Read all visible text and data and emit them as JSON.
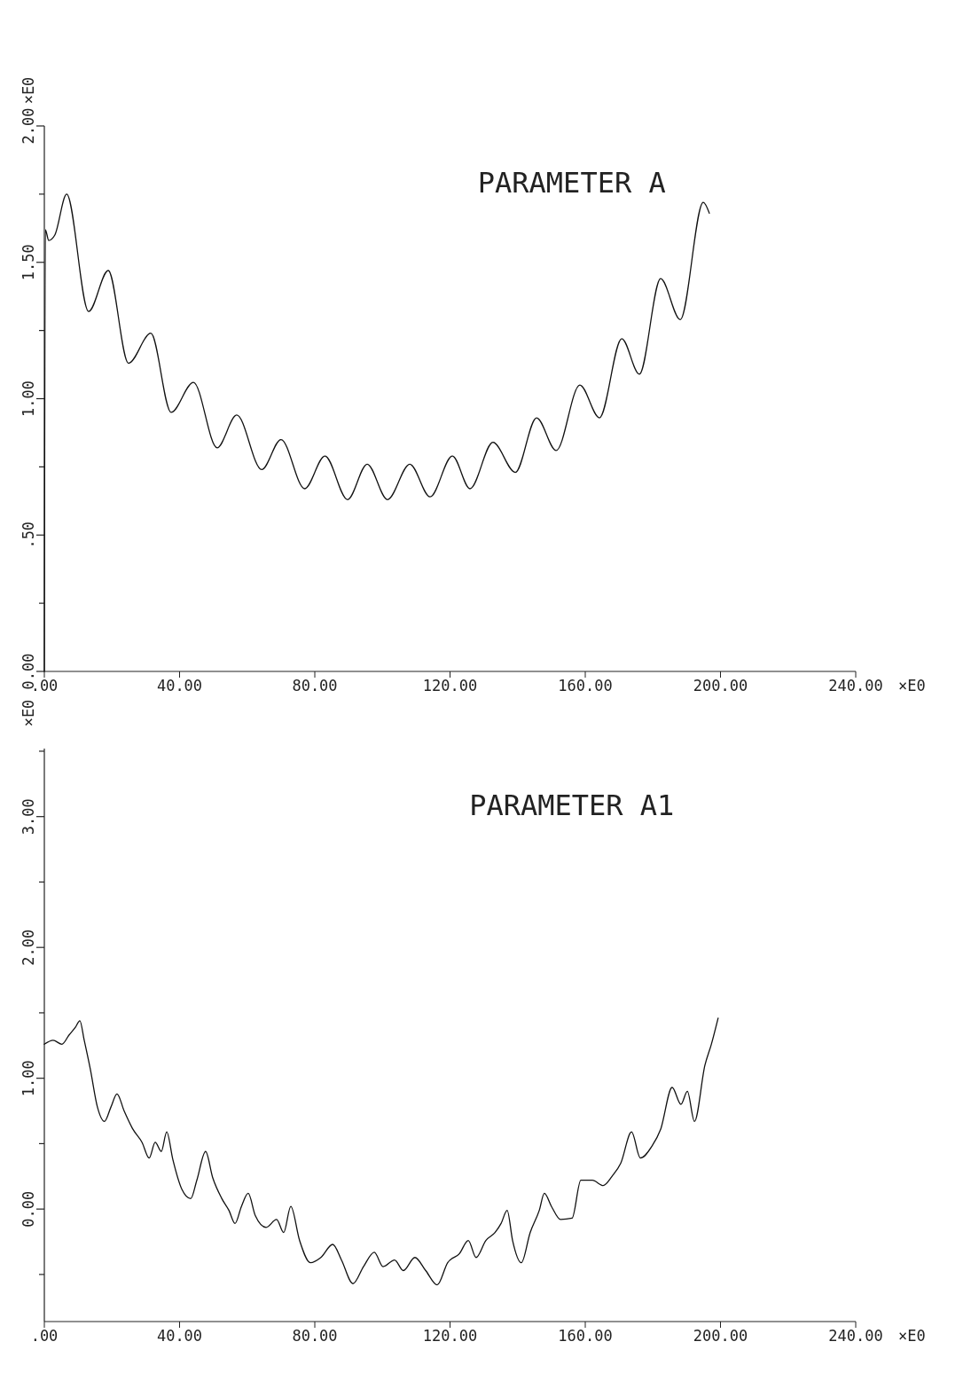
{
  "chart_data": [
    {
      "type": "line",
      "title": "PARAMETER A",
      "xlabel": "×E0",
      "ylabel": "×E0",
      "xlim": [
        0,
        240
      ],
      "ylim": [
        0,
        2
      ],
      "xticks": [
        {
          "value": 0,
          "label": ".00"
        },
        {
          "value": 40,
          "label": "40.00"
        },
        {
          "value": 80,
          "label": "80.00"
        },
        {
          "value": 120,
          "label": "120.00"
        },
        {
          "value": 160,
          "label": "160.00"
        },
        {
          "value": 200,
          "label": "200.00"
        },
        {
          "value": 240,
          "label": "240.00"
        }
      ],
      "yticks": [
        {
          "value": 0,
          "label": "0.00"
        },
        {
          "value": 0.25,
          "label": null
        },
        {
          "value": 0.5,
          "label": ".50"
        },
        {
          "value": 0.75,
          "label": null
        },
        {
          "value": 1,
          "label": "1.00"
        },
        {
          "value": 1.25,
          "label": null
        },
        {
          "value": 1.5,
          "label": "1.50"
        },
        {
          "value": 1.75,
          "label": null
        },
        {
          "value": 2,
          "label": "2.00"
        }
      ],
      "grid": false,
      "series": [
        {
          "color": "#111111",
          "x": [
            0,
            0.3,
            1.3,
            3.1,
            6.6,
            13.1,
            18.9,
            24.9,
            31.5,
            37.5,
            44.1,
            51.1,
            56.9,
            64.3,
            70.0,
            77.0,
            83.0,
            89.7,
            95.5,
            101.5,
            108.1,
            114.1,
            120.7,
            125.9,
            132.7,
            139.3,
            145.6,
            151.4,
            158.4,
            164.2,
            170.8,
            176.0,
            182.3,
            188.1,
            194.9,
            196.7
          ],
          "values": [
            0,
            1.62,
            1.58,
            1.6,
            1.75,
            1.32,
            1.47,
            1.13,
            1.24,
            0.95,
            1.06,
            0.82,
            0.94,
            0.74,
            0.85,
            0.67,
            0.79,
            0.63,
            0.76,
            0.63,
            0.76,
            0.64,
            0.79,
            0.67,
            0.84,
            0.73,
            0.93,
            0.81,
            1.05,
            0.93,
            1.22,
            1.09,
            1.44,
            1.29,
            1.72,
            1.68
          ]
        }
      ]
    },
    {
      "type": "line",
      "title": "PARAMETER A1",
      "xlabel": "×E0",
      "ylabel": "×E0",
      "xlim": [
        0,
        240
      ],
      "ylim": [
        -0.86,
        3.52
      ],
      "xticks": [
        {
          "value": 0,
          "label": ".00"
        },
        {
          "value": 40,
          "label": "40.00"
        },
        {
          "value": 80,
          "label": "80.00"
        },
        {
          "value": 120,
          "label": "120.00"
        },
        {
          "value": 160,
          "label": "160.00"
        },
        {
          "value": 200,
          "label": "200.00"
        },
        {
          "value": 240,
          "label": "240.00"
        }
      ],
      "yticks": [
        {
          "value": -0.5,
          "label": null
        },
        {
          "value": 0,
          "label": "0.00"
        },
        {
          "value": 0.5,
          "label": null
        },
        {
          "value": 1,
          "label": "1.00"
        },
        {
          "value": 1.5,
          "label": null
        },
        {
          "value": 2,
          "label": "2.00"
        },
        {
          "value": 2.5,
          "label": null
        },
        {
          "value": 3,
          "label": "3.00"
        },
        {
          "value": 3.5,
          "label": null
        }
      ],
      "grid": false,
      "series": [
        {
          "color": "#111111",
          "x": [
            0,
            2.6,
            5.2,
            7.3,
            9.2,
            10.5,
            11.8,
            13.6,
            15.7,
            17.8,
            19.7,
            21.5,
            23.6,
            26.2,
            28.9,
            31.0,
            32.8,
            34.6,
            36.2,
            38.0,
            40.7,
            43.3,
            45.1,
            47.7,
            49.8,
            52.5,
            54.6,
            56.4,
            58.3,
            60.3,
            62.4,
            65.6,
            68.7,
            70.8,
            72.9,
            75.5,
            78.7,
            81.8,
            85.3,
            87.9,
            91.3,
            94.4,
            97.6,
            100.2,
            103.6,
            106.2,
            109.6,
            112.8,
            116.2,
            119.3,
            122.8,
            125.4,
            127.7,
            130.6,
            133.3,
            135.1,
            136.9,
            138.5,
            141.1,
            143.7,
            146.4,
            147.9,
            150.0,
            152.7,
            156.1,
            158.7,
            162.1,
            165.3,
            167.9,
            170.5,
            173.7,
            176.3,
            179.7,
            182.3,
            185.7,
            188.3,
            190.2,
            192.3,
            195.4,
            197.3,
            199.3
          ],
          "values": [
            1.26,
            1.29,
            1.26,
            1.33,
            1.39,
            1.44,
            1.29,
            1.07,
            0.78,
            0.67,
            0.78,
            0.88,
            0.75,
            0.61,
            0.51,
            0.39,
            0.51,
            0.44,
            0.59,
            0.38,
            0.15,
            0.08,
            0.22,
            0.44,
            0.24,
            0.08,
            -0.01,
            -0.11,
            0.02,
            0.12,
            -0.05,
            -0.14,
            -0.08,
            -0.18,
            0.02,
            -0.24,
            -0.41,
            -0.37,
            -0.27,
            -0.39,
            -0.57,
            -0.44,
            -0.33,
            -0.44,
            -0.39,
            -0.47,
            -0.37,
            -0.47,
            -0.58,
            -0.41,
            -0.34,
            -0.24,
            -0.37,
            -0.24,
            -0.18,
            -0.11,
            -0.01,
            -0.24,
            -0.41,
            -0.18,
            -0.01,
            0.12,
            0.02,
            -0.08,
            -0.07,
            0.22,
            0.22,
            0.18,
            0.25,
            0.35,
            0.59,
            0.39,
            0.48,
            0.61,
            0.93,
            0.8,
            0.9,
            0.67,
            1.1,
            1.26,
            1.46
          ]
        }
      ]
    }
  ]
}
